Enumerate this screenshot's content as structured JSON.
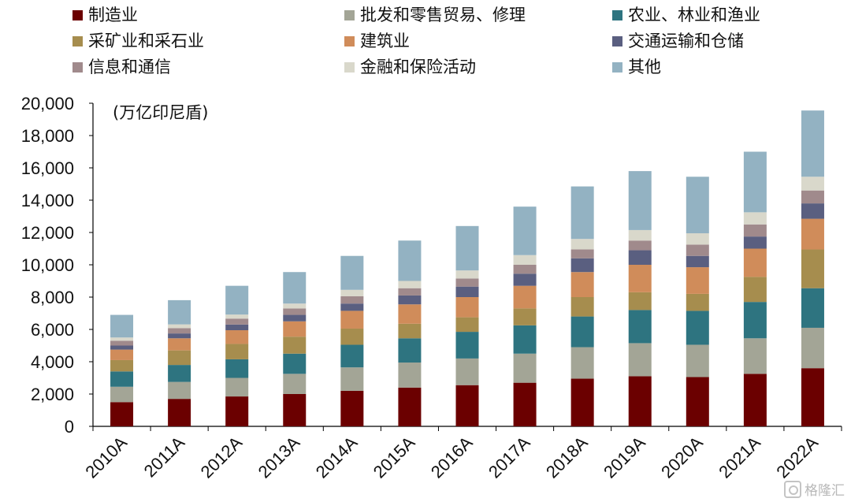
{
  "chart_data": {
    "type": "bar",
    "stacked": true,
    "unit": "(万亿印尼盾)",
    "categories": [
      "2010A",
      "2011A",
      "2012A",
      "2013A",
      "2014A",
      "2015A",
      "2016A",
      "2017A",
      "2018A",
      "2019A",
      "2020A",
      "2021A",
      "2022A"
    ],
    "ylim": [
      0,
      20000
    ],
    "yticks": [
      0,
      2000,
      4000,
      6000,
      8000,
      10000,
      12000,
      14000,
      16000,
      18000,
      20000
    ],
    "ytick_labels": [
      "0",
      "2,000",
      "4,000",
      "6,000",
      "8,000",
      "10,000",
      "12,000",
      "14,000",
      "16,000",
      "18,000",
      "20,000"
    ],
    "grid": false,
    "legend_position": "top",
    "series": [
      {
        "name": "制造业",
        "color": "#6b0000",
        "values": [
          1500,
          1700,
          1850,
          2000,
          2200,
          2400,
          2550,
          2700,
          2950,
          3100,
          3050,
          3250,
          3600
        ]
      },
      {
        "name": "批发和零售贸易、修理",
        "color": "#a3a596",
        "values": [
          950,
          1050,
          1150,
          1250,
          1450,
          1550,
          1650,
          1800,
          1950,
          2050,
          2000,
          2200,
          2500
        ]
      },
      {
        "name": "农业、林业和渔业",
        "color": "#2e7480",
        "values": [
          950,
          1050,
          1150,
          1250,
          1400,
          1500,
          1650,
          1750,
          1900,
          2050,
          2100,
          2250,
          2450
        ]
      },
      {
        "name": "采矿业和采石业",
        "color": "#a68d4e",
        "values": [
          700,
          900,
          950,
          1050,
          1000,
          900,
          900,
          1050,
          1200,
          1100,
          1050,
          1550,
          2400
        ]
      },
      {
        "name": "建筑业",
        "color": "#d08c5a",
        "values": [
          650,
          750,
          850,
          950,
          1100,
          1200,
          1250,
          1400,
          1550,
          1700,
          1650,
          1750,
          1900
        ]
      },
      {
        "name": "交通运输和仓储",
        "color": "#5a5f80",
        "values": [
          250,
          300,
          350,
          400,
          450,
          550,
          650,
          750,
          850,
          900,
          700,
          750,
          950
        ]
      },
      {
        "name": "信息和通信",
        "color": "#a08a8c",
        "values": [
          300,
          330,
          370,
          400,
          450,
          450,
          500,
          550,
          550,
          600,
          700,
          750,
          800
        ]
      },
      {
        "name": "金融和保险活动",
        "color": "#d9d8cb",
        "values": [
          200,
          230,
          250,
          300,
          400,
          450,
          500,
          600,
          650,
          650,
          700,
          750,
          850
        ]
      },
      {
        "name": "其他",
        "color": "#93b2c2",
        "values": [
          1400,
          1500,
          1780,
          1950,
          2100,
          2500,
          2750,
          3000,
          3250,
          3650,
          3500,
          3750,
          4100
        ]
      }
    ]
  },
  "watermark": "格隆汇"
}
